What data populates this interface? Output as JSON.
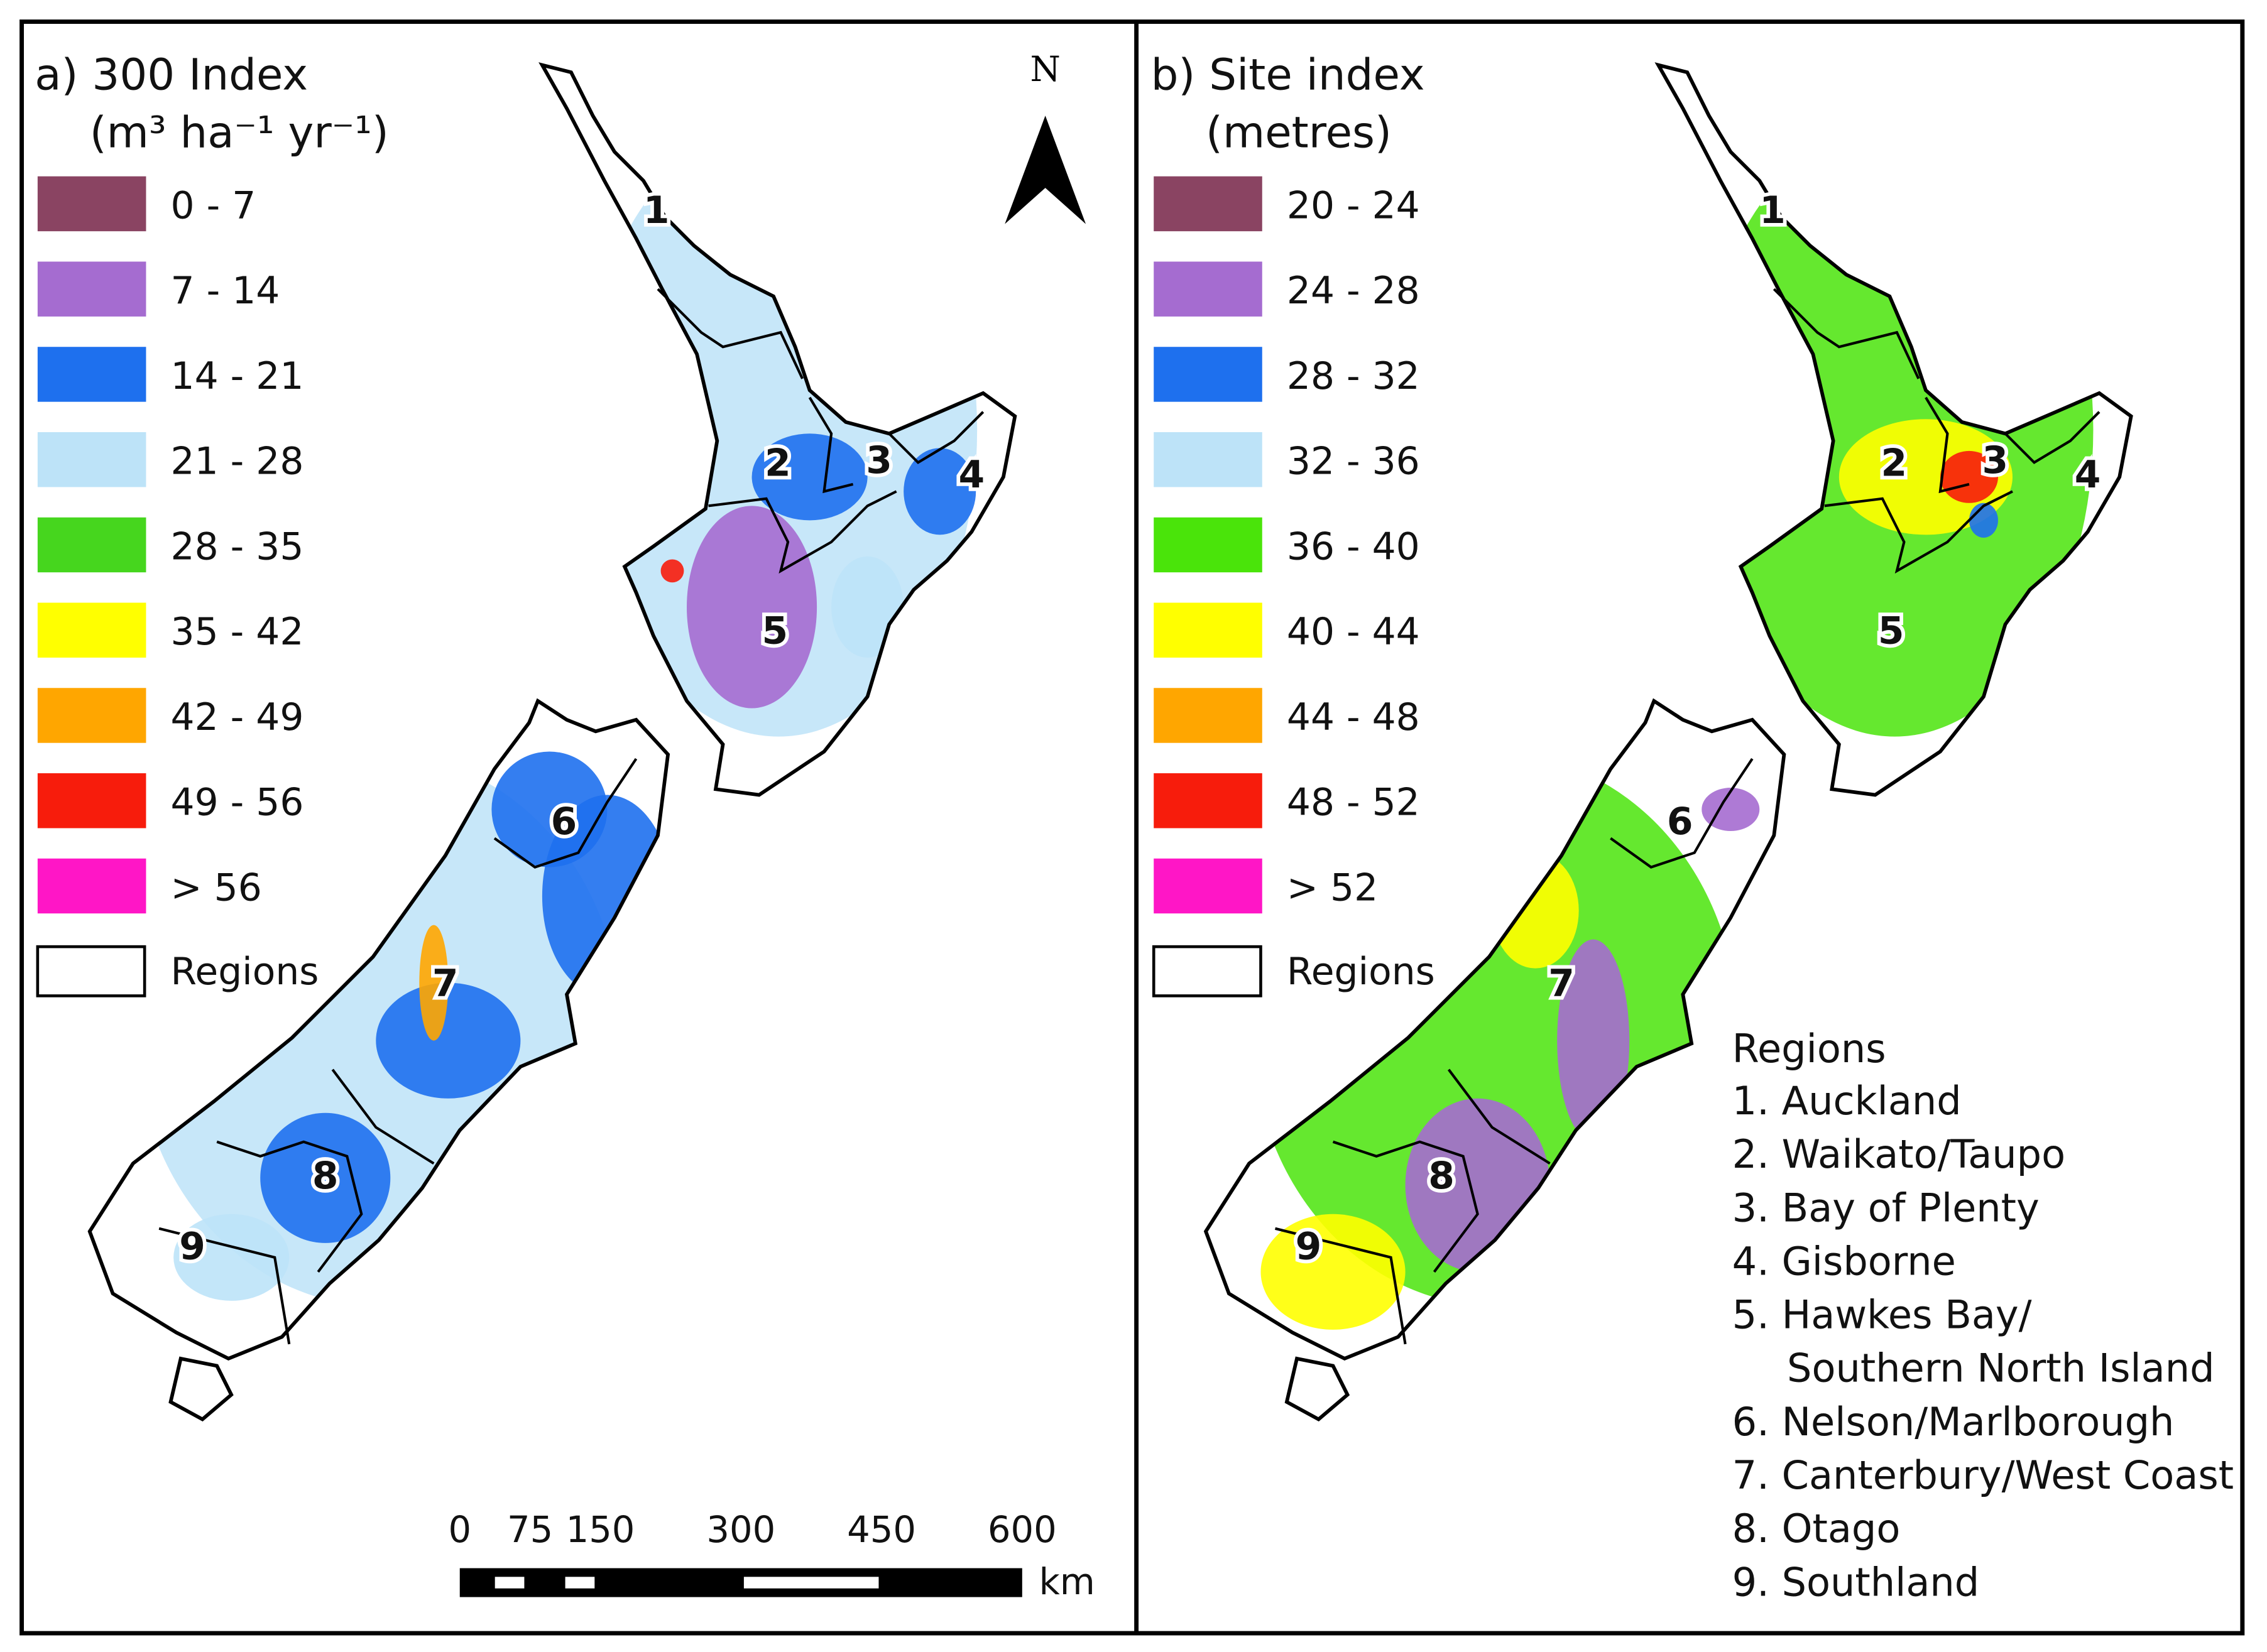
{
  "north": "N",
  "region_numbers": [
    "1",
    "2",
    "3",
    "4",
    "5",
    "6",
    "7",
    "8",
    "9"
  ],
  "panels": [
    {
      "title": "a) 300 Index",
      "subtitle": "(m³ ha⁻¹ yr⁻¹)",
      "legend": [
        {
          "label": "0 - 7",
          "color": "#8a4462"
        },
        {
          "label": "7 - 14",
          "color": "#a56cd0"
        },
        {
          "label": "14 - 21",
          "color": "#1e70ee"
        },
        {
          "label": "21 - 28",
          "color": "#bde3f8"
        },
        {
          "label": "28 - 35",
          "color": "#46d61e"
        },
        {
          "label": "35 - 42",
          "color": "#ffff00"
        },
        {
          "label": "42 - 49",
          "color": "#ffa600"
        },
        {
          "label": "49 - 56",
          "color": "#f71c0c"
        },
        {
          "label": "> 56",
          "color": "#ff16c6"
        }
      ],
      "regions_label": "Regions"
    },
    {
      "title": "b) Site index",
      "subtitle": "(metres)",
      "legend": [
        {
          "label": "20 - 24",
          "color": "#8a4462"
        },
        {
          "label": "24 - 28",
          "color": "#a56cd0"
        },
        {
          "label": "28 - 32",
          "color": "#1e70ee"
        },
        {
          "label": "32 - 36",
          "color": "#bde3f8"
        },
        {
          "label": "36 - 40",
          "color": "#4ae40a"
        },
        {
          "label": "40 - 44",
          "color": "#ffff00"
        },
        {
          "label": "44 - 48",
          "color": "#ffa600"
        },
        {
          "label": "48 - 52",
          "color": "#f71c0c"
        },
        {
          "label": "> 52",
          "color": "#ff16c6"
        }
      ],
      "regions_label": "Regions"
    }
  ],
  "region_list": {
    "title": "Regions",
    "items": [
      "1. Auckland",
      "2. Waikato/Taupo",
      "3. Bay of Plenty",
      "4. Gisborne",
      "5. Hawkes Bay/",
      "Southern North Island",
      "6. Nelson/Marlborough",
      "7. Canterbury/West Coast",
      "8. Otago",
      "9. Southland"
    ]
  },
  "scale_bar": {
    "ticks": [
      0,
      75,
      150,
      300,
      450,
      600
    ],
    "unit": "km"
  }
}
